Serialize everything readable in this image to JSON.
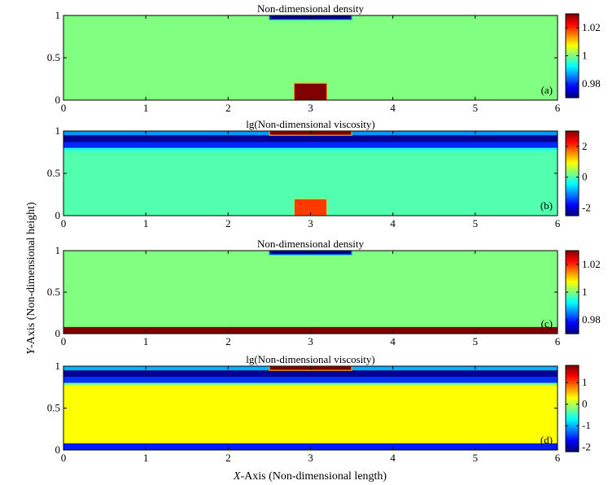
{
  "axis_labels": {
    "x": "X-Axis (Non-dimensional length)",
    "x_italic": "X",
    "x_rest": "-Axis (Non-dimensional length)",
    "y": "Y-Axis (Non-dimensional height)",
    "y_italic": "Y",
    "y_rest": "-Axis (Non-dimensional height)"
  },
  "chart_data": [
    {
      "type": "heatmap",
      "panel": "(a)",
      "title": "Non-dimensional density",
      "xlim": [
        0,
        6
      ],
      "ylim": [
        0,
        1
      ],
      "xticks": [
        "0",
        "1",
        "2",
        "3",
        "4",
        "5",
        "6"
      ],
      "yticks": [
        "0",
        "0.5",
        "1"
      ],
      "background_value": 1.0,
      "regions": [
        {
          "x": [
            2.5,
            3.5
          ],
          "y": [
            0.95,
            1.0
          ],
          "value": 0.97
        },
        {
          "x": [
            2.8,
            3.2
          ],
          "y": [
            0.0,
            0.2
          ],
          "value": 1.03
        }
      ],
      "colorbar": {
        "range": [
          0.97,
          1.03
        ],
        "ticks": [
          "0.98",
          "1",
          "1.02"
        ]
      }
    },
    {
      "type": "heatmap",
      "panel": "(b)",
      "title": "lg(Non-dimensional viscosity)",
      "xlim": [
        0,
        6
      ],
      "ylim": [
        0,
        1
      ],
      "xticks": [
        "0",
        "1",
        "2",
        "3",
        "4",
        "5",
        "6"
      ],
      "yticks": [
        "0",
        "0.5",
        "1"
      ],
      "background_value": 0.0,
      "regions": [
        {
          "x": [
            0,
            6
          ],
          "y": [
            0.95,
            1.0
          ],
          "value": -1.0
        },
        {
          "x": [
            0,
            6
          ],
          "y": [
            0.87,
            0.95
          ],
          "value": -2.4
        },
        {
          "x": [
            0,
            6
          ],
          "y": [
            0.8,
            0.87
          ],
          "value": -1.6
        },
        {
          "x": [
            0,
            6
          ],
          "y": [
            0.77,
            0.8
          ],
          "value": -0.3
        },
        {
          "x": [
            2.5,
            3.5
          ],
          "y": [
            0.95,
            1.0
          ],
          "value": 3.0
        },
        {
          "x": [
            2.8,
            3.2
          ],
          "y": [
            0.0,
            0.2
          ],
          "value": 2.0
        }
      ],
      "colorbar": {
        "range": [
          -2.5,
          3.0
        ],
        "ticks": [
          "-2",
          "0",
          "2"
        ]
      }
    },
    {
      "type": "heatmap",
      "panel": "(c)",
      "title": "Non-dimensional density",
      "xlim": [
        0,
        6
      ],
      "ylim": [
        0,
        1
      ],
      "xticks": [
        "0",
        "1",
        "2",
        "3",
        "4",
        "5",
        "6"
      ],
      "yticks": [
        "0",
        "0.5",
        "1"
      ],
      "background_value": 1.0,
      "regions": [
        {
          "x": [
            2.5,
            3.5
          ],
          "y": [
            0.95,
            1.0
          ],
          "value": 0.97
        },
        {
          "x": [
            0,
            6
          ],
          "y": [
            0.0,
            0.08
          ],
          "value": 1.03
        }
      ],
      "colorbar": {
        "range": [
          0.97,
          1.03
        ],
        "ticks": [
          "0.98",
          "1",
          "1.02"
        ]
      }
    },
    {
      "type": "heatmap",
      "panel": "(d)",
      "title": "lg(Non-dimensional viscosity)",
      "xlim": [
        0,
        6
      ],
      "ylim": [
        0,
        1
      ],
      "xticks": [
        "0",
        "1",
        "2",
        "3",
        "4",
        "5",
        "6"
      ],
      "yticks": [
        "0",
        "0.5",
        "1"
      ],
      "background_value": 0.3,
      "regions": [
        {
          "x": [
            0,
            6
          ],
          "y": [
            0.95,
            1.0
          ],
          "value": -1.0
        },
        {
          "x": [
            0,
            6
          ],
          "y": [
            0.87,
            0.95
          ],
          "value": -2.1
        },
        {
          "x": [
            0,
            6
          ],
          "y": [
            0.8,
            0.87
          ],
          "value": -1.5
        },
        {
          "x": [
            0,
            6
          ],
          "y": [
            0.77,
            0.8
          ],
          "value": -0.2
        },
        {
          "x": [
            0,
            6
          ],
          "y": [
            0.0,
            0.08
          ],
          "value": -1.6
        },
        {
          "x": [
            2.5,
            3.5
          ],
          "y": [
            0.95,
            1.0
          ],
          "value": 1.8
        }
      ],
      "colorbar": {
        "range": [
          -2.2,
          1.8
        ],
        "ticks": [
          "-2",
          "-1",
          "0",
          "1"
        ]
      }
    }
  ]
}
